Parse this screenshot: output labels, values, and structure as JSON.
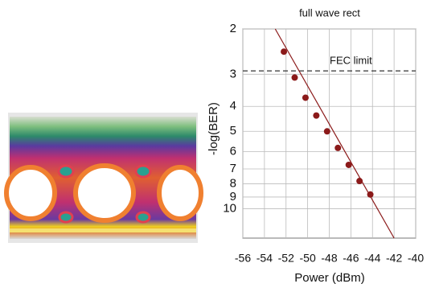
{
  "chart_data": {
    "type": "scatter",
    "title": "full wave rect",
    "xlabel": "Power (dBm)",
    "ylabel": "-log(BER)",
    "xlim": [
      -56,
      -40
    ],
    "xticks": [
      -56,
      -54,
      -52,
      -50,
      -48,
      -46,
      -44,
      -42,
      -40
    ],
    "ylim": [
      2,
      13
    ],
    "yticks": [
      2,
      3,
      4,
      5,
      6,
      7,
      8,
      9,
      10
    ],
    "log_scale": true,
    "grid": true,
    "series": [
      {
        "color": "#8b1a1a",
        "x": [
          -52.2,
          -51.2,
          -50.2,
          -49.2,
          -48.2,
          -47.2,
          -46.2,
          -45.2,
          -44.2
        ],
        "values": [
          2.45,
          3.09,
          3.7,
          4.34,
          5.0,
          5.8,
          6.75,
          7.8,
          8.8
        ]
      },
      {
        "type": "line",
        "color": "#8b1a1a",
        "x": [
          -53,
          -42
        ],
        "values": [
          2,
          13
        ]
      }
    ],
    "hlines": [
      {
        "value": 2.91,
        "label": "FEC limit",
        "color": "#333333"
      }
    ]
  }
}
